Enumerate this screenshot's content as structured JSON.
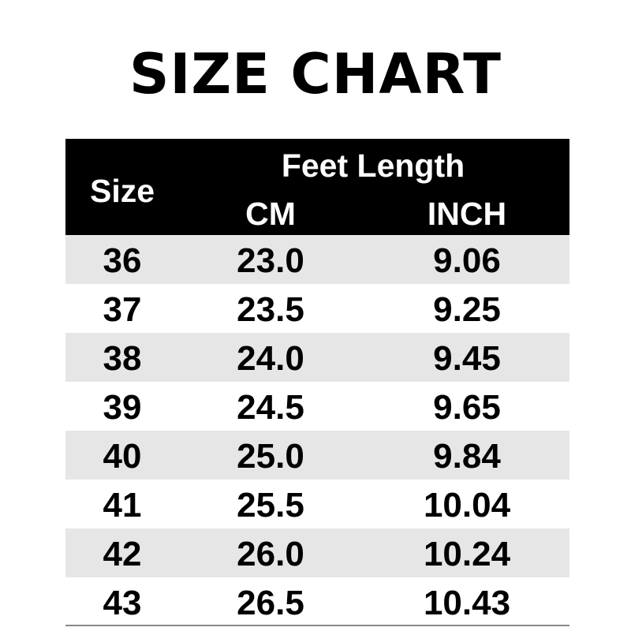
{
  "title": "SIZE CHART",
  "header": {
    "size": "Size",
    "feet_length": "Feet Length",
    "cm": "CM",
    "inch": "INCH"
  },
  "rows": [
    {
      "size": "36",
      "cm": "23.0",
      "inch": "9.06"
    },
    {
      "size": "37",
      "cm": "23.5",
      "inch": "9.25"
    },
    {
      "size": "38",
      "cm": "24.0",
      "inch": "9.45"
    },
    {
      "size": "39",
      "cm": "24.5",
      "inch": "9.65"
    },
    {
      "size": "40",
      "cm": "25.0",
      "inch": "9.84"
    },
    {
      "size": "41",
      "cm": "25.5",
      "inch": "10.04"
    },
    {
      "size": "42",
      "cm": "26.0",
      "inch": "10.24"
    },
    {
      "size": "43",
      "cm": "26.5",
      "inch": "10.43"
    }
  ],
  "colors": {
    "header_bg": "#000000",
    "stripe": "#e6e6e6"
  }
}
